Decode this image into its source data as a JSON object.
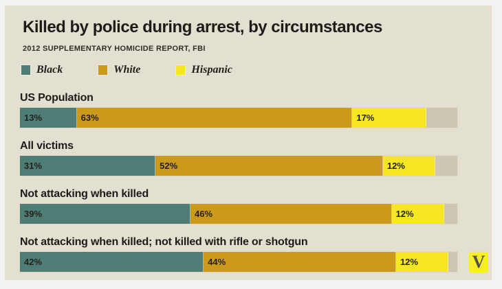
{
  "page": {
    "outer_bg": "#f2f3f1",
    "card_bg": "#e4e0d1"
  },
  "header": {
    "title": "Killed by police during arrest, by circumstances",
    "subtitle": "2012 SUPPLEMENTARY HOMICIDE REPORT, FBI"
  },
  "legend": [
    {
      "label": "Black",
      "color": "#4e7d76"
    },
    {
      "label": "White",
      "color": "#cb9a1d"
    },
    {
      "label": "Hispanic",
      "color": "#f6e722"
    }
  ],
  "chart_data": {
    "type": "bar",
    "variant": "horizontal-stacked-percent",
    "title": "Killed by police during arrest, by circumstances",
    "source": "2012 SUPPLEMENTARY HOMICIDE REPORT, FBI",
    "unit": "%",
    "xlim": [
      0,
      100
    ],
    "legend_position": "top",
    "grid": false,
    "series_names": [
      "Black",
      "White",
      "Hispanic"
    ],
    "series_colors": [
      "#4e7d76",
      "#cb9a1d",
      "#f6e722"
    ],
    "categories": [
      "US Population",
      "All victims",
      "Not attacking when killed",
      "Not attacking when killed; not killed with rifle or shotgun"
    ],
    "series": [
      {
        "name": "Black",
        "values": [
          13,
          31,
          39,
          42
        ]
      },
      {
        "name": "White",
        "values": [
          63,
          52,
          46,
          44
        ]
      },
      {
        "name": "Hispanic",
        "values": [
          17,
          12,
          12,
          12
        ]
      }
    ],
    "rows": [
      {
        "category": "US Population",
        "values": [
          13,
          63,
          17
        ],
        "labels": [
          "13%",
          "63%",
          "17%"
        ]
      },
      {
        "category": "All victims",
        "values": [
          31,
          52,
          12
        ],
        "labels": [
          "31%",
          "52%",
          "12%"
        ]
      },
      {
        "category": "Not attacking when killed",
        "values": [
          39,
          46,
          12
        ],
        "labels": [
          "39%",
          "46%",
          "12%"
        ]
      },
      {
        "category": "Not attacking when killed; not killed with rifle or shotgun",
        "values": [
          42,
          44,
          12
        ],
        "labels": [
          "42%",
          "44%",
          "12%"
        ]
      }
    ],
    "track_color": "#cdc6b3"
  },
  "branding": {
    "logo_letter": "V",
    "logo_bg": "#f8ee26"
  }
}
